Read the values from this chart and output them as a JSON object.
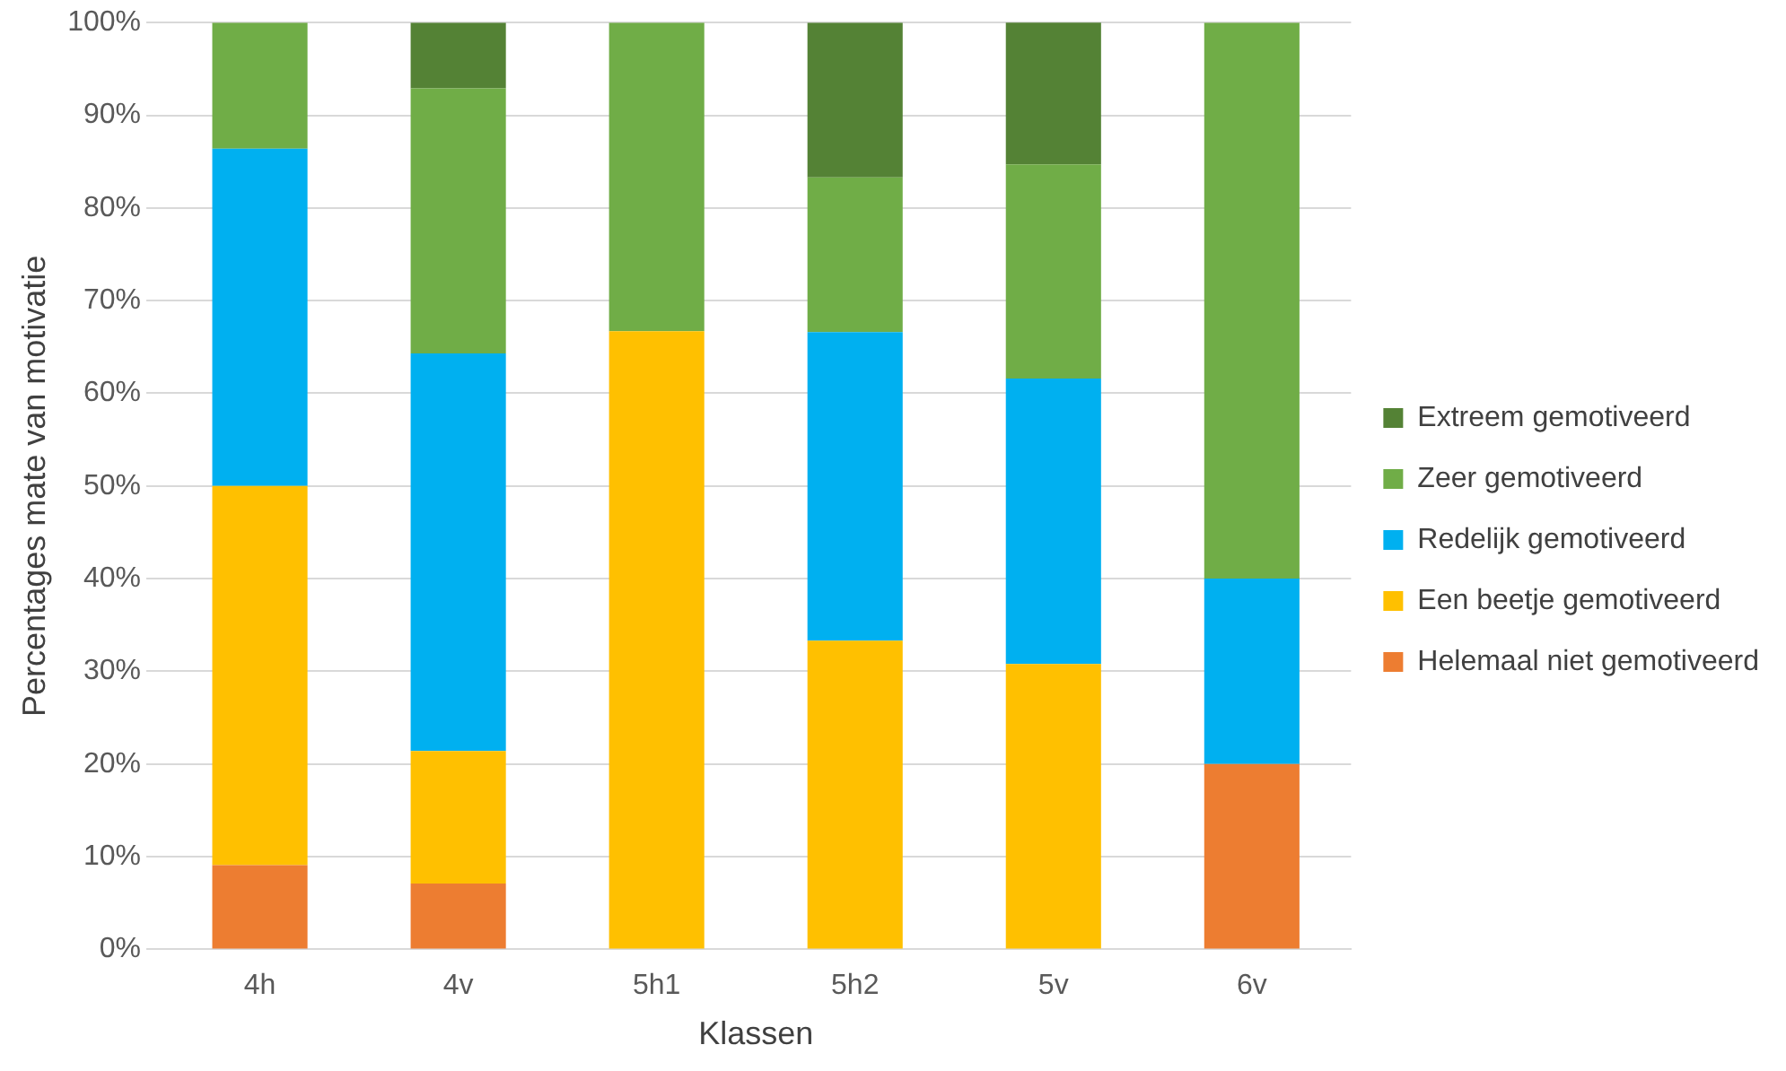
{
  "chart_data": {
    "type": "bar",
    "stacked": true,
    "xlabel": "Klassen",
    "ylabel": "Percentages mate van motivatie",
    "categories": [
      "4h",
      "4v",
      "5h1",
      "5h2",
      "5v",
      "6v"
    ],
    "series": [
      {
        "name": "Helemaal niet gemotiveerd",
        "color": "#ed7d31",
        "values": [
          9.1,
          7.1,
          0,
          0,
          0,
          20
        ]
      },
      {
        "name": "Een beetje gemotiveerd",
        "color": "#ffc000",
        "values": [
          40.9,
          14.3,
          66.7,
          33.3,
          30.8,
          0
        ]
      },
      {
        "name": "Redelijk gemotiveerd",
        "color": "#00b0f0",
        "values": [
          36.4,
          42.9,
          0,
          33.3,
          30.8,
          20
        ]
      },
      {
        "name": "Zeer gemotiveerd",
        "color": "#70ad47",
        "values": [
          13.6,
          28.6,
          33.3,
          16.7,
          23.1,
          60
        ]
      },
      {
        "name": "Extreem gemotiveerd",
        "color": "#548235",
        "values": [
          0,
          7.1,
          0,
          16.7,
          15.4,
          0
        ]
      }
    ],
    "ylim": [
      0,
      100
    ],
    "yticks": [
      {
        "value": 0,
        "label": "0%"
      },
      {
        "value": 10,
        "label": "10%"
      },
      {
        "value": 20,
        "label": "20%"
      },
      {
        "value": 30,
        "label": "30%"
      },
      {
        "value": 40,
        "label": "40%"
      },
      {
        "value": 50,
        "label": "50%"
      },
      {
        "value": 60,
        "label": "60%"
      },
      {
        "value": 70,
        "label": "70%"
      },
      {
        "value": 80,
        "label": "80%"
      },
      {
        "value": 90,
        "label": "90%"
      },
      {
        "value": 100,
        "label": "100%"
      }
    ],
    "grid": "y",
    "legend": "right"
  }
}
